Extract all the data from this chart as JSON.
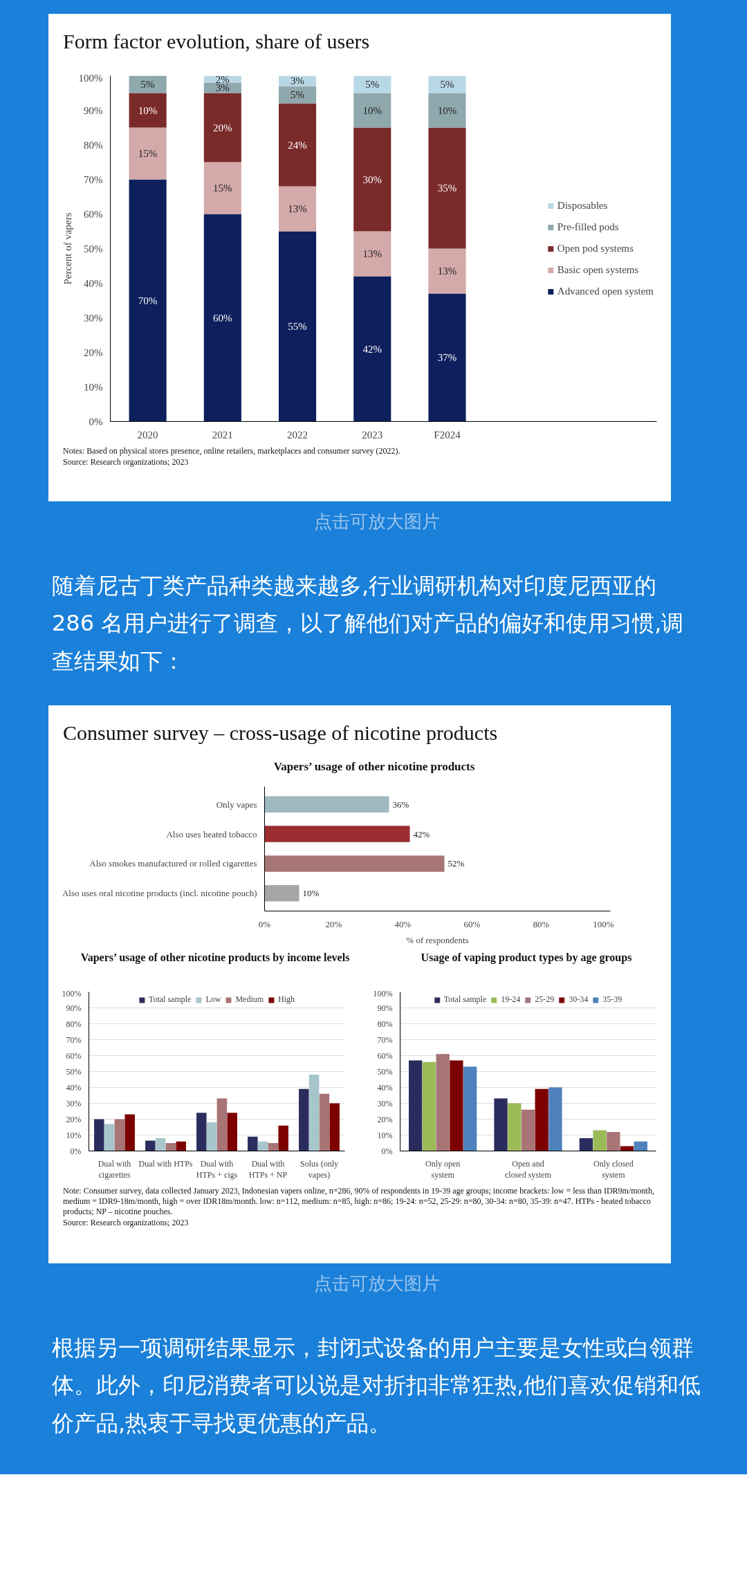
{
  "chart_data": [
    {
      "type": "bar",
      "stacked": true,
      "title": "Form factor evolution, share of users",
      "ylabel": "Percent of vapers",
      "categories": [
        "2020",
        "2021",
        "2022",
        "2023",
        "F2024"
      ],
      "series": [
        {
          "name": "Advanced open system",
          "color": "#0d1f5c",
          "values": [
            70,
            60,
            55,
            42,
            37
          ],
          "value_labels": [
            "70%",
            "60%",
            "55%",
            "42%",
            "37%"
          ]
        },
        {
          "name": "Basic open systems",
          "color": "#d4a9a9",
          "values": [
            15,
            15,
            13,
            13,
            13
          ],
          "value_labels": [
            "15%",
            "15%",
            "13%",
            "13%",
            "13%"
          ]
        },
        {
          "name": "Open pod systems",
          "color": "#7b2a2a",
          "values": [
            10,
            20,
            24,
            30,
            35
          ],
          "value_labels": [
            "10%",
            "20%",
            "24%",
            "30%",
            "35%"
          ]
        },
        {
          "name": "Pre-filled pods",
          "color": "#8fa8ad",
          "values": [
            5,
            3,
            5,
            10,
            10
          ],
          "value_labels": [
            "5%",
            "3%",
            "5%",
            "10%",
            "10%"
          ]
        },
        {
          "name": "Disposables",
          "color": "#b9d8e6",
          "values": [
            0,
            2,
            3,
            5,
            5
          ],
          "value_labels": [
            null,
            "2%",
            "3%",
            "5%",
            "5%"
          ]
        }
      ],
      "ylim": [
        0,
        100
      ],
      "yticks": [
        {
          "value": 0,
          "label": "0%"
        },
        {
          "value": 10,
          "label": "10%"
        },
        {
          "value": 20,
          "label": "20%"
        },
        {
          "value": 30,
          "label": "30%"
        },
        {
          "value": 40,
          "label": "40%"
        },
        {
          "value": 50,
          "label": "50%"
        },
        {
          "value": 60,
          "label": "60%"
        },
        {
          "value": 70,
          "label": "70%"
        },
        {
          "value": 80,
          "label": "80%"
        },
        {
          "value": 90,
          "label": "90%"
        },
        {
          "value": 100,
          "label": "100%"
        }
      ],
      "grid": false,
      "legend": "right",
      "annotations": [
        "Notes: Based on physical stores presence, online retailers, marketplaces and consumer survey (2022).",
        "Source: Research organizations; 2023"
      ]
    },
    {
      "type": "other",
      "annotations": [
        "点击可放大图片",
        "随着尼古丁类产品种类越来越多,行业调研机构对印度尼西亚的 286 名用户进行了调查，以了解他们对产品的偏好和使用习惯,调查结果如下："
      ]
    },
    {
      "type": "bar",
      "orientation": "horizontal",
      "title": "Consumer survey – cross-usage of nicotine products",
      "subtitle": "Vapers’ usage of other nicotine products",
      "xlabel": "% of respondents",
      "categories": [
        "Only vapes",
        "Also uses heated tobacco",
        "Also smokes manufactured or rolled cigarettes",
        "Also uses oral nicotine products (incl. nicotine pouch)"
      ],
      "values": [
        36,
        42,
        52,
        10
      ],
      "colors": [
        "#9fb9c0",
        "#9b2d30",
        "#a87575",
        "#a6a6a6"
      ],
      "value_labels": [
        "36%",
        "42%",
        "52%",
        "10%"
      ],
      "xlim": [
        0,
        100
      ],
      "xticks": [
        {
          "value": 0,
          "label": "0%"
        },
        {
          "value": 20,
          "label": "20%"
        },
        {
          "value": 40,
          "label": "40%"
        },
        {
          "value": 60,
          "label": "60%"
        },
        {
          "value": 80,
          "label": "80%"
        },
        {
          "value": 100,
          "label": "100%"
        }
      ],
      "grid": false
    },
    {
      "type": "bar",
      "title": "Vapers’ usage of other nicotine products by income levels",
      "categories": [
        "Dual with cigarettes",
        "Dual with HTPs",
        "Dual with HTPs + cigs",
        "Dual with HTPs + NP",
        "Solus (only vapes)"
      ],
      "series": [
        {
          "name": "Total sample",
          "color": "#2b2c5e",
          "values": [
            20,
            6.5,
            24,
            9,
            39
          ]
        },
        {
          "name": "Low",
          "color": "#a6c6cc",
          "values": [
            17,
            8,
            18,
            6,
            48
          ]
        },
        {
          "name": "Medium",
          "color": "#a87476",
          "values": [
            20,
            5,
            33,
            5,
            36
          ]
        },
        {
          "name": "High",
          "color": "#7d0000",
          "values": [
            23,
            6,
            24,
            16,
            30
          ]
        }
      ],
      "ylim": [
        0,
        100
      ],
      "yticks": [
        {
          "value": 0,
          "label": "0%"
        },
        {
          "value": 10,
          "label": "10%"
        },
        {
          "value": 20,
          "label": "20%"
        },
        {
          "value": 30,
          "label": "30%"
        },
        {
          "value": 40,
          "label": "40%"
        },
        {
          "value": 50,
          "label": "50%"
        },
        {
          "value": 60,
          "label": "60%"
        },
        {
          "value": 70,
          "label": "70%"
        },
        {
          "value": 80,
          "label": "80%"
        },
        {
          "value": 90,
          "label": "90%"
        },
        {
          "value": 100,
          "label": "100%"
        }
      ],
      "grid": "y",
      "legend": "top",
      "annotations": [
        "Note: Consumer survey, data collected January 2023, Indonesian vapers online, n=286, 90% of respondents in 19-39 age groups; income brackets: low = less than IDR9m/month, medium = IDR9-18m/month, high = over IDR18m/month. low: n=112, medium: n=85, high: n=86; 19-24: n=52, 25-29: n=80, 30-34: n=80, 35-39: n=47. HTPs - heated tobacco products; NP – nicotine pouches.",
        "Source: Research organizations; 2023"
      ]
    },
    {
      "type": "bar",
      "title": "Usage of vaping product types by age groups",
      "categories": [
        "Only open system",
        "Open and closed system",
        "Only closed system"
      ],
      "series": [
        {
          "name": "Total sample",
          "color": "#2b2c5e",
          "values": [
            57,
            33,
            8
          ]
        },
        {
          "name": "19-24",
          "color": "#9bbb59",
          "values": [
            56,
            30,
            13
          ]
        },
        {
          "name": "25-29",
          "color": "#a87476",
          "values": [
            61,
            26,
            12
          ]
        },
        {
          "name": "30-34",
          "color": "#7d0000",
          "values": [
            57,
            39,
            3
          ]
        },
        {
          "name": "35-39",
          "color": "#4f81bd",
          "values": [
            53,
            40,
            6
          ]
        }
      ],
      "ylim": [
        0,
        100
      ],
      "yticks": [
        {
          "value": 0,
          "label": "0%"
        },
        {
          "value": 10,
          "label": "10%"
        },
        {
          "value": 20,
          "label": "20%"
        },
        {
          "value": 30,
          "label": "30%"
        },
        {
          "value": 40,
          "label": "40%"
        },
        {
          "value": 50,
          "label": "50%"
        },
        {
          "value": 60,
          "label": "60%"
        },
        {
          "value": 70,
          "label": "70%"
        },
        {
          "value": 80,
          "label": "80%"
        },
        {
          "value": 90,
          "label": "90%"
        },
        {
          "value": 100,
          "label": "100%"
        }
      ],
      "grid": "y",
      "legend": "top"
    },
    {
      "type": "other",
      "annotations": [
        "点击可放大图片",
        "根据另一项调研结果显示，封闭式设备的用户主要是女性或白领群体。此外，印尼消费者可以说是对折扣非常狂热,他们喜欢促销和低价产品,热衷于寻找更优惠的产品。"
      ]
    }
  ]
}
